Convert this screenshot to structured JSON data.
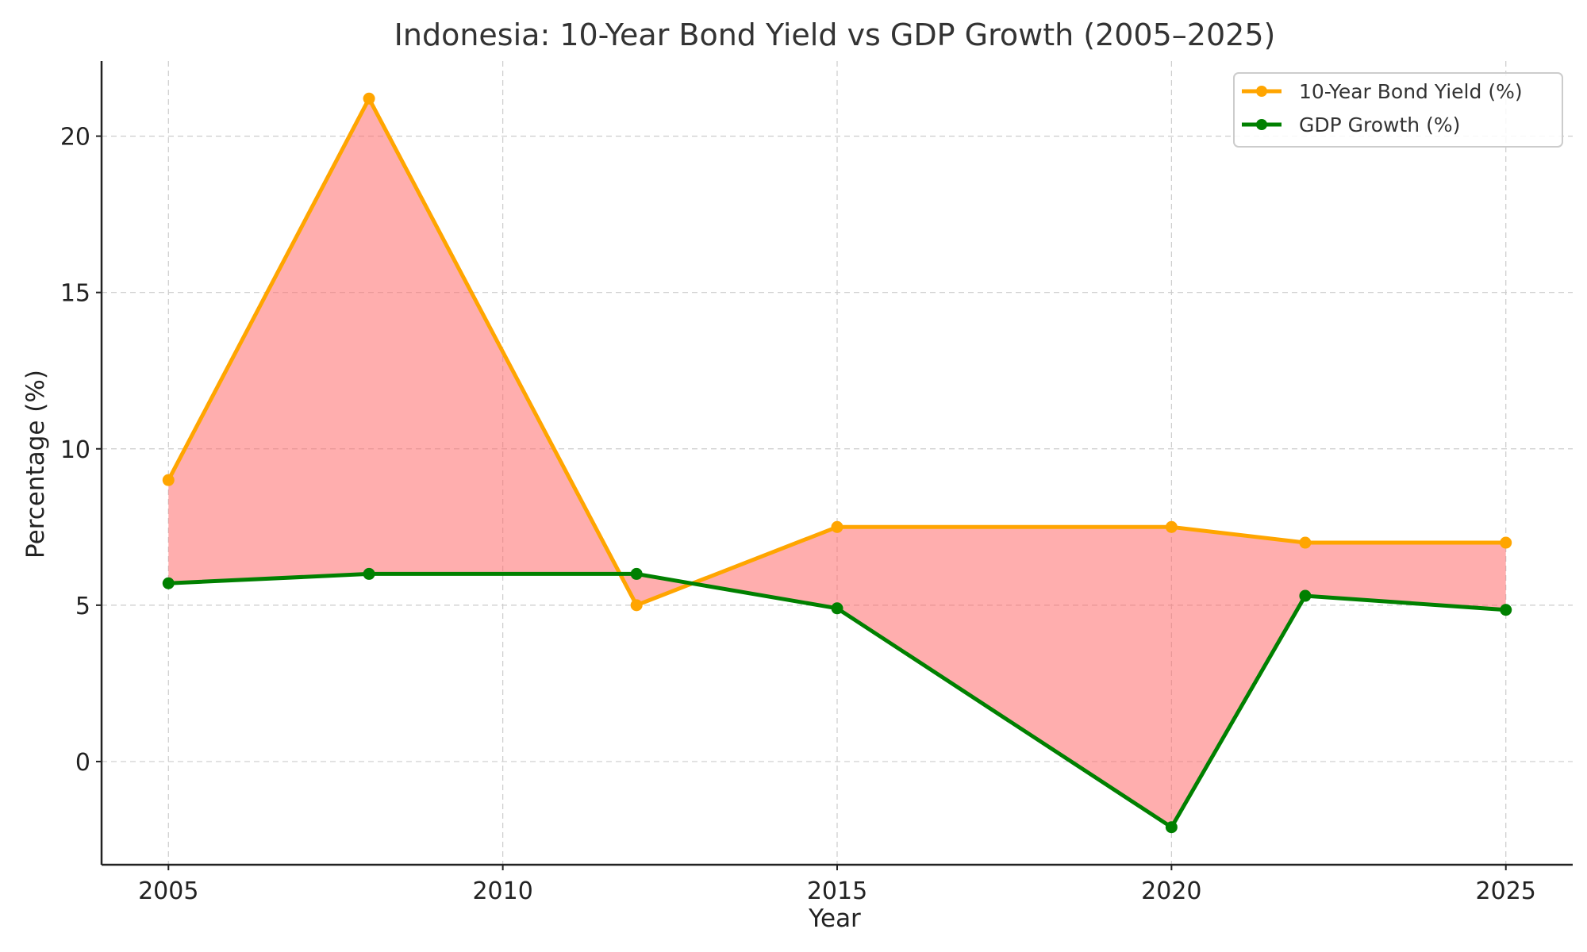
{
  "chart_data": {
    "type": "line",
    "title": "Indonesia: 10-Year Bond Yield vs GDP Growth (2005–2025)",
    "xlabel": "Year",
    "ylabel": "Percentage (%)",
    "xlim": [
      2004,
      2026
    ],
    "ylim": [
      -3.3,
      22.4
    ],
    "xticks": [
      2005,
      2010,
      2015,
      2020,
      2025
    ],
    "yticks": [
      0,
      5,
      10,
      15,
      20
    ],
    "grid": true,
    "legend_position": "top-right",
    "x": [
      2005,
      2008,
      2012,
      2015,
      2020,
      2022,
      2025
    ],
    "series": [
      {
        "name": "10-Year Bond Yield (%)",
        "color": "#FFA500",
        "values": [
          9.0,
          21.2,
          5.0,
          7.5,
          7.5,
          7.0,
          7.0
        ]
      },
      {
        "name": "GDP Growth (%)",
        "color": "#008000",
        "values": [
          5.7,
          6.0,
          6.0,
          4.9,
          -2.1,
          5.3,
          4.85
        ]
      }
    ],
    "fill_between": {
      "series": [
        0,
        1
      ],
      "color": "#FF6B6B",
      "opacity": 0.55
    }
  }
}
